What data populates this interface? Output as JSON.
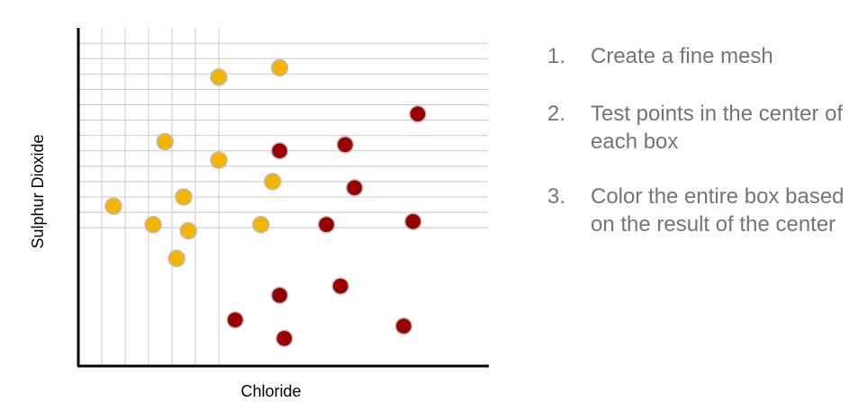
{
  "chart_data": {
    "type": "scatter",
    "xlabel": "Chloride",
    "ylabel": "Sulphur Dioxide",
    "grid": true,
    "legend": "none",
    "vertical_gridlines": [
      1,
      2,
      3,
      4,
      5,
      6
    ],
    "horizontal_gridlines": [
      4.5,
      5.0,
      5.5,
      6.0,
      6.5,
      7.0,
      7.5,
      8.0,
      8.5,
      9.0,
      9.5,
      10.0,
      10.5
    ],
    "xlim": [
      0,
      17.5
    ],
    "ylim": [
      0,
      11.0
    ],
    "colors": {
      "class_a": "#f5b400",
      "class_b": "#990000"
    },
    "series": [
      {
        "class": "class_a",
        "color": "#f5b400",
        "points": [
          {
            "x": 6.0,
            "y": 9.4
          },
          {
            "x": 8.6,
            "y": 9.7
          },
          {
            "x": 3.7,
            "y": 7.3
          },
          {
            "x": 6.0,
            "y": 6.7
          },
          {
            "x": 8.3,
            "y": 6.0
          },
          {
            "x": 4.5,
            "y": 5.5
          },
          {
            "x": 1.5,
            "y": 5.2
          },
          {
            "x": 3.2,
            "y": 4.6
          },
          {
            "x": 4.7,
            "y": 4.4
          },
          {
            "x": 7.8,
            "y": 4.6
          },
          {
            "x": 4.2,
            "y": 3.5
          }
        ]
      },
      {
        "class": "class_b",
        "color": "#990000",
        "points": [
          {
            "x": 14.5,
            "y": 8.2
          },
          {
            "x": 8.6,
            "y": 7.0
          },
          {
            "x": 11.4,
            "y": 7.2
          },
          {
            "x": 11.8,
            "y": 5.8
          },
          {
            "x": 10.6,
            "y": 4.6
          },
          {
            "x": 14.3,
            "y": 4.7
          },
          {
            "x": 11.2,
            "y": 2.6
          },
          {
            "x": 8.6,
            "y": 2.3
          },
          {
            "x": 6.7,
            "y": 1.5
          },
          {
            "x": 8.8,
            "y": 0.9
          },
          {
            "x": 13.9,
            "y": 1.3
          }
        ]
      }
    ]
  },
  "steps": [
    {
      "number": "1.",
      "text": "Create a fine mesh"
    },
    {
      "number": "2.",
      "text": "Test points in the center of each box"
    },
    {
      "number": "3.",
      "text": "Color the entire box based on the result of the center"
    }
  ]
}
